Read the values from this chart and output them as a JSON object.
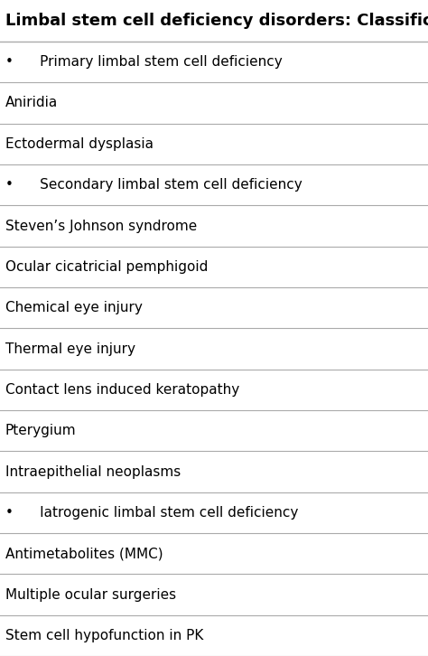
{
  "title": "Limbal stem cell deficiency disorders: Classification",
  "rows": [
    {
      "text": "•      Primary limbal stem cell deficiency"
    },
    {
      "text": "Aniridia"
    },
    {
      "text": "Ectodermal dysplasia"
    },
    {
      "text": "•      Secondary limbal stem cell deficiency"
    },
    {
      "text": "Steven’s Johnson syndrome"
    },
    {
      "text": "Ocular cicatricial pemphigoid"
    },
    {
      "text": "Chemical eye injury"
    },
    {
      "text": "Thermal eye injury"
    },
    {
      "text": "Contact lens induced keratopathy"
    },
    {
      "text": "Pterygium"
    },
    {
      "text": "Intraepithelial neoplasms"
    },
    {
      "text": "•      Iatrogenic limbal stem cell deficiency"
    },
    {
      "text": "Antimetabolites (MMC)"
    },
    {
      "text": "Multiple ocular surgeries"
    },
    {
      "text": "Stem cell hypofunction in PK"
    }
  ],
  "bg_color": "#ffffff",
  "line_color": "#aaaaaa",
  "text_color": "#000000",
  "title_font_size": 13,
  "body_font_size": 11,
  "fig_width": 4.74,
  "fig_height": 7.26,
  "dpi": 100
}
